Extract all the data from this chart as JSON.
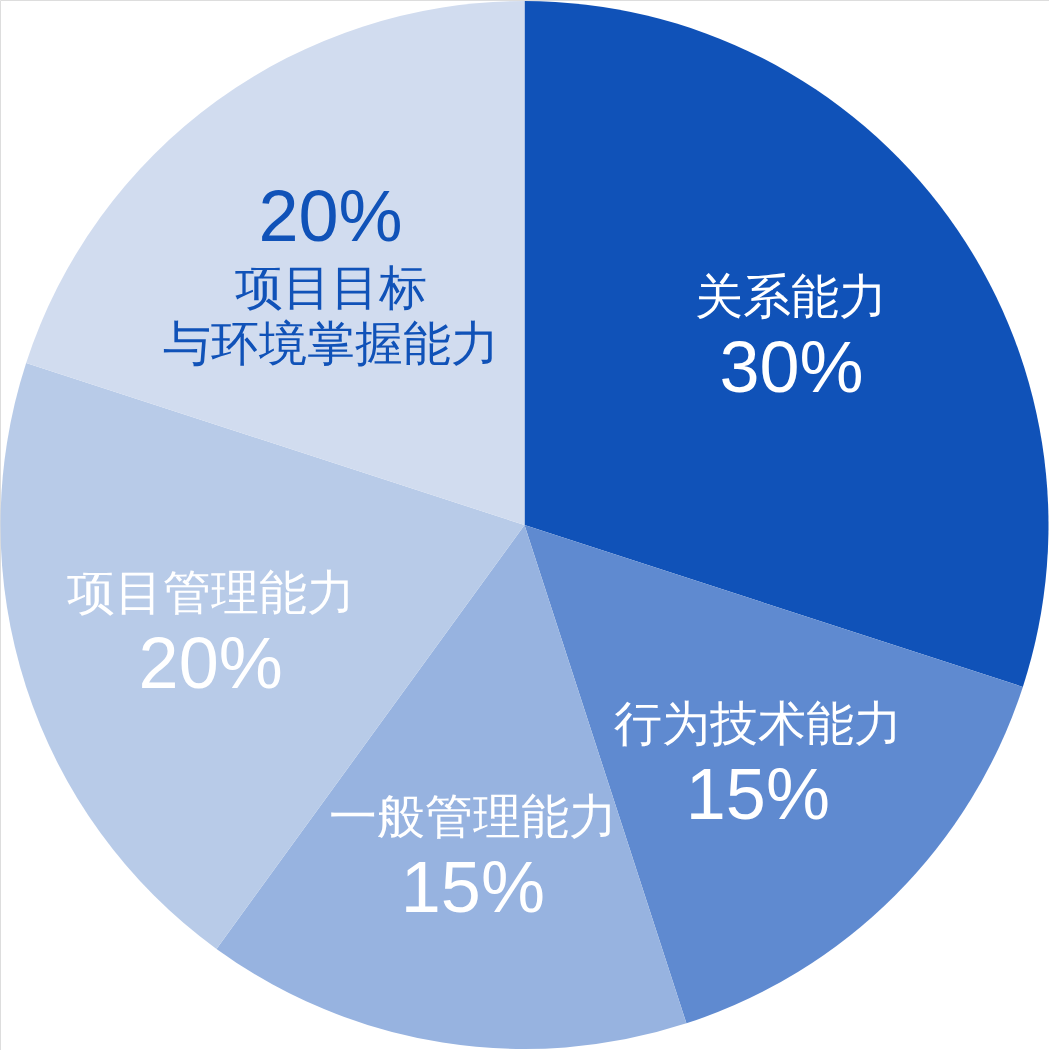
{
  "chart_data": {
    "type": "pie",
    "categories": [
      "关系能力",
      "行为技术能力",
      "一般管理能力",
      "项目管理能力",
      "项目目标与环境掌握能力"
    ],
    "values": [
      30,
      15,
      15,
      20,
      20
    ],
    "value_labels": [
      "30%",
      "15%",
      "15%",
      "20%",
      "20%"
    ],
    "colors": [
      "#1052b8",
      "#5f8ad0",
      "#97b3e0",
      "#b8cbe8",
      "#d1dcef"
    ]
  }
}
